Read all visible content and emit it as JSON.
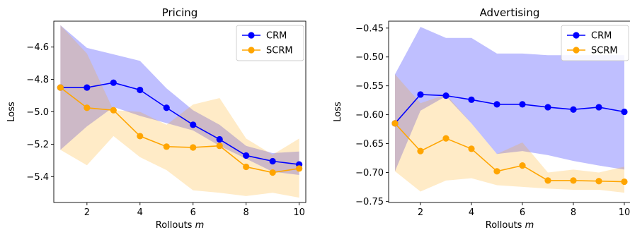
{
  "chart_data": [
    {
      "type": "line",
      "title": "Pricing",
      "xlabel": "Rollouts m",
      "ylabel": "Loss",
      "xlim": [
        0.75,
        10.25
      ],
      "ylim": [
        -5.56,
        -4.44
      ],
      "xticks": [
        2,
        4,
        6,
        8,
        10
      ],
      "yticks": [
        -5.4,
        -5.2,
        -5.0,
        -4.8,
        -4.6
      ],
      "grid": false,
      "legend": "top-right",
      "x": [
        1,
        2,
        3,
        4,
        5,
        6,
        7,
        8,
        9,
        10
      ],
      "series": [
        {
          "name": "CRM",
          "color": "#0000ff",
          "values": [
            -4.85,
            -4.85,
            -4.82,
            -4.865,
            -4.975,
            -5.08,
            -5.17,
            -5.27,
            -5.305,
            -5.325
          ],
          "band_lower": [
            -5.235,
            -5.09,
            -4.97,
            -5.025,
            -5.07,
            -5.115,
            -5.21,
            -5.29,
            -5.37,
            -5.39
          ],
          "band_upper": [
            -4.465,
            -4.605,
            -4.645,
            -4.685,
            -4.855,
            -4.99,
            -5.08,
            -5.21,
            -5.255,
            -5.245
          ]
        },
        {
          "name": "SCRM",
          "color": "#ffa500",
          "values": [
            -4.85,
            -4.975,
            -4.99,
            -5.15,
            -5.215,
            -5.22,
            -5.21,
            -5.34,
            -5.375,
            -5.35
          ],
          "band_lower": [
            -5.235,
            -5.33,
            -5.15,
            -5.28,
            -5.36,
            -5.485,
            -5.5,
            -5.52,
            -5.5,
            -5.53
          ],
          "band_upper": [
            -4.465,
            -4.64,
            -4.99,
            -5.0,
            -5.08,
            -4.955,
            -4.915,
            -5.165,
            -5.265,
            -5.165
          ]
        }
      ]
    },
    {
      "type": "line",
      "title": "Advertising",
      "xlabel": "Rollouts m",
      "ylabel": "Loss",
      "xlim": [
        0.75,
        10.25
      ],
      "ylim": [
        -0.752,
        -0.438
      ],
      "xticks": [
        2,
        4,
        6,
        8,
        10
      ],
      "yticks": [
        -0.75,
        -0.7,
        -0.65,
        -0.6,
        -0.55,
        -0.5,
        -0.45
      ],
      "grid": false,
      "legend": "top-right",
      "x": [
        1,
        2,
        3,
        4,
        5,
        6,
        7,
        8,
        9,
        10
      ],
      "series": [
        {
          "name": "CRM",
          "color": "#0000ff",
          "values": [
            -0.615,
            -0.565,
            -0.567,
            -0.574,
            -0.582,
            -0.582,
            -0.587,
            -0.591,
            -0.587,
            -0.595
          ],
          "band_lower": [
            -0.698,
            -0.593,
            -0.568,
            -0.615,
            -0.668,
            -0.663,
            -0.67,
            -0.68,
            -0.688,
            -0.695
          ],
          "band_upper": [
            -0.53,
            -0.448,
            -0.467,
            -0.467,
            -0.494,
            -0.494,
            -0.497,
            -0.497,
            -0.497,
            -0.497
          ]
        },
        {
          "name": "SCRM",
          "color": "#ffa500",
          "values": [
            -0.615,
            -0.663,
            -0.641,
            -0.659,
            -0.698,
            -0.688,
            -0.714,
            -0.714,
            -0.715,
            -0.716
          ],
          "band_lower": [
            -0.698,
            -0.733,
            -0.714,
            -0.71,
            -0.722,
            -0.725,
            -0.728,
            -0.73,
            -0.73,
            -0.735
          ],
          "band_upper": [
            -0.53,
            -0.58,
            -0.565,
            -0.615,
            -0.668,
            -0.648,
            -0.7,
            -0.695,
            -0.7,
            -0.69
          ]
        }
      ]
    }
  ]
}
